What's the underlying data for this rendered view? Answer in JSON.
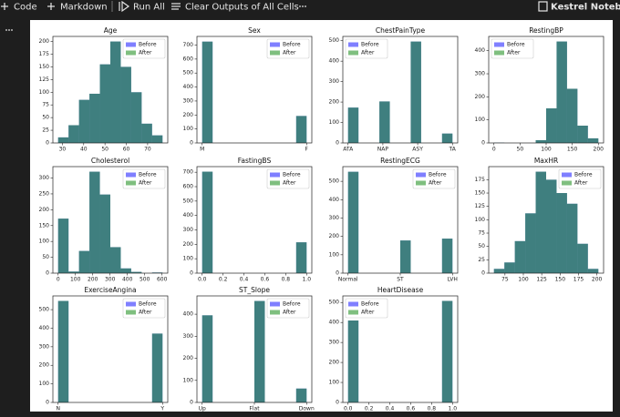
{
  "toolbar": [
    "Code",
    "Markdown",
    "Run All",
    "Clear Outputs of All Cells"
  ],
  "kernel": "Kestrel Notebook",
  "chart_data": [
    {
      "type": "histogram",
      "title": "Age",
      "bins": [
        28,
        32.9,
        37.8,
        42.7,
        47.6,
        52.5,
        57.4,
        62.3,
        67.2,
        72.1,
        77
      ],
      "alpha": 0.5,
      "legend": "upper right",
      "series": [
        {
          "name": "Before",
          "color": "#0000ff",
          "values": [
            11,
            35,
            85,
            97,
            155,
            200,
            150,
            100,
            38,
            15
          ]
        },
        {
          "name": "After",
          "color": "#008000",
          "values": [
            11,
            35,
            85,
            97,
            155,
            200,
            150,
            100,
            38,
            15
          ]
        }
      ],
      "xlim": [
        25.55,
        79.45
      ],
      "xticks": [
        30,
        40,
        50,
        60,
        70
      ],
      "ylim": [
        0,
        210
      ],
      "yticks": [
        0,
        25,
        50,
        75,
        100,
        125,
        150,
        175,
        200
      ]
    },
    {
      "type": "histogram",
      "title": "Sex",
      "bins": [
        0,
        0.1,
        0.2,
        0.3,
        0.4,
        0.5,
        0.6,
        0.7,
        0.8,
        0.9,
        1
      ],
      "alpha": 0.5,
      "legend": "upper right",
      "series": [
        {
          "name": "Before",
          "color": "#0000ff",
          "values": [
            725,
            0,
            0,
            0,
            0,
            0,
            0,
            0,
            0,
            193
          ]
        },
        {
          "name": "After",
          "color": "#008000",
          "values": [
            725,
            0,
            0,
            0,
            0,
            0,
            0,
            0,
            0,
            193
          ]
        }
      ],
      "xlim": [
        -0.05,
        1.05
      ],
      "xticks": [
        {
          "value": 0,
          "label": "M"
        },
        {
          "value": 1,
          "label": "F"
        }
      ],
      "ylim": [
        0,
        762
      ],
      "yticks": [
        0,
        100,
        200,
        300,
        400,
        500,
        600,
        700
      ]
    },
    {
      "type": "histogram",
      "title": "ChestPainType",
      "bins": [
        0,
        0.3,
        0.6,
        0.9,
        1.2,
        1.5,
        1.8,
        2.1,
        2.4,
        2.7,
        3
      ],
      "alpha": 0.5,
      "legend": "upper left",
      "series": [
        {
          "name": "Before",
          "color": "#0000ff",
          "values": [
            173,
            0,
            0,
            203,
            0,
            0,
            496,
            0,
            0,
            46
          ]
        },
        {
          "name": "After",
          "color": "#008000",
          "values": [
            173,
            0,
            0,
            203,
            0,
            0,
            496,
            0,
            0,
            46
          ]
        }
      ],
      "xlim": [
        -0.15,
        3.15
      ],
      "xticks": [
        {
          "value": 0,
          "label": "ATA"
        },
        {
          "value": 1,
          "label": "NAP"
        },
        {
          "value": 2,
          "label": "ASY"
        },
        {
          "value": 3,
          "label": "TA"
        }
      ],
      "ylim": [
        0,
        521
      ],
      "yticks": [
        0,
        100,
        200,
        300,
        400,
        500
      ]
    },
    {
      "type": "histogram",
      "title": "RestingBP",
      "bins": [
        0,
        20,
        40,
        60,
        80,
        100,
        120,
        140,
        160,
        180,
        200
      ],
      "alpha": 0.5,
      "legend": "upper left",
      "series": [
        {
          "name": "Before",
          "color": "#0000ff",
          "values": [
            1,
            0,
            0,
            0,
            12,
            150,
            440,
            235,
            75,
            20
          ]
        },
        {
          "name": "After",
          "color": "#008000",
          "values": [
            1,
            0,
            0,
            0,
            12,
            150,
            440,
            235,
            75,
            20
          ]
        }
      ],
      "xlim": [
        -10,
        210
      ],
      "xticks": [
        0,
        50,
        100,
        150,
        200
      ],
      "ylim": [
        0,
        462
      ],
      "yticks": [
        0,
        100,
        200,
        300,
        400
      ]
    },
    {
      "type": "histogram",
      "title": "Cholesterol",
      "bins": [
        0,
        60.3,
        120.6,
        180.9,
        241.2,
        301.5,
        361.8,
        422.1,
        482.4,
        542.7,
        603
      ],
      "alpha": 0.5,
      "legend": "upper right",
      "series": [
        {
          "name": "Before",
          "color": "#0000ff",
          "values": [
            172,
            5,
            70,
            320,
            248,
            82,
            15,
            4,
            0,
            2
          ]
        },
        {
          "name": "After",
          "color": "#008000",
          "values": [
            172,
            5,
            70,
            320,
            248,
            82,
            15,
            4,
            0,
            2
          ]
        }
      ],
      "xlim": [
        -30.15,
        633.15
      ],
      "xticks": [
        0,
        100,
        200,
        300,
        400,
        500,
        600
      ],
      "ylim": [
        0,
        336
      ],
      "yticks": [
        0,
        50,
        100,
        150,
        200,
        250,
        300
      ]
    },
    {
      "type": "histogram",
      "title": "FastingBS",
      "bins": [
        0,
        0.1,
        0.2,
        0.3,
        0.4,
        0.5,
        0.6,
        0.7,
        0.8,
        0.9,
        1
      ],
      "alpha": 0.5,
      "legend": "upper right",
      "series": [
        {
          "name": "Before",
          "color": "#0000ff",
          "values": [
            704,
            0,
            0,
            0,
            0,
            0,
            0,
            0,
            0,
            214
          ]
        },
        {
          "name": "After",
          "color": "#008000",
          "values": [
            704,
            0,
            0,
            0,
            0,
            0,
            0,
            0,
            0,
            214
          ]
        }
      ],
      "xlim": [
        -0.05,
        1.05
      ],
      "xticks": [
        {
          "value": 0,
          "label": "0.0"
        },
        {
          "value": 0.2,
          "label": "0.2"
        },
        {
          "value": 0.4,
          "label": "0.4"
        },
        {
          "value": 0.6,
          "label": "0.6"
        },
        {
          "value": 0.8,
          "label": "0.8"
        },
        {
          "value": 1,
          "label": "1.0"
        }
      ],
      "ylim": [
        0,
        739
      ],
      "yticks": [
        0,
        100,
        200,
        300,
        400,
        500,
        600,
        700
      ]
    },
    {
      "type": "histogram",
      "title": "RestingECG",
      "bins": [
        0,
        0.2,
        0.4,
        0.6,
        0.8,
        1,
        1.2,
        1.4,
        1.6,
        1.8,
        2
      ],
      "alpha": 0.5,
      "legend": "upper right",
      "series": [
        {
          "name": "Before",
          "color": "#0000ff",
          "values": [
            552,
            0,
            0,
            0,
            0,
            178,
            0,
            0,
            0,
            188
          ]
        },
        {
          "name": "After",
          "color": "#008000",
          "values": [
            552,
            0,
            0,
            0,
            0,
            178,
            0,
            0,
            0,
            188
          ]
        }
      ],
      "xlim": [
        -0.1,
        2.1
      ],
      "xticks": [
        {
          "value": 0,
          "label": "Normal"
        },
        {
          "value": 1,
          "label": "ST"
        },
        {
          "value": 2,
          "label": "LVH"
        }
      ],
      "ylim": [
        0,
        580
      ],
      "yticks": [
        0,
        100,
        200,
        300,
        400,
        500
      ]
    },
    {
      "type": "histogram",
      "title": "MaxHR",
      "bins": [
        60,
        74.2,
        88.4,
        102.6,
        116.8,
        131,
        145.2,
        159.4,
        173.6,
        187.8,
        202
      ],
      "alpha": 0.5,
      "legend": "upper right",
      "series": [
        {
          "name": "Before",
          "color": "#0000ff",
          "values": [
            8,
            20,
            60,
            112,
            190,
            175,
            150,
            130,
            55,
            8
          ]
        },
        {
          "name": "After",
          "color": "#008000",
          "values": [
            8,
            20,
            60,
            112,
            190,
            175,
            150,
            130,
            55,
            8
          ]
        }
      ],
      "xlim": [
        52.9,
        209.1
      ],
      "xticks": [
        75,
        100,
        125,
        150,
        175,
        200
      ],
      "ylim": [
        0,
        199.5
      ],
      "yticks": [
        0,
        25,
        50,
        75,
        100,
        125,
        150,
        175
      ]
    },
    {
      "type": "histogram",
      "title": "ExerciseAngina",
      "bins": [
        0,
        0.1,
        0.2,
        0.3,
        0.4,
        0.5,
        0.6,
        0.7,
        0.8,
        0.9,
        1
      ],
      "alpha": 0.5,
      "legend": "upper right",
      "series": [
        {
          "name": "Before",
          "color": "#0000ff",
          "values": [
            547,
            0,
            0,
            0,
            0,
            0,
            0,
            0,
            0,
            371
          ]
        },
        {
          "name": "After",
          "color": "#008000",
          "values": [
            547,
            0,
            0,
            0,
            0,
            0,
            0,
            0,
            0,
            371
          ]
        }
      ],
      "xlim": [
        -0.05,
        1.05
      ],
      "xticks": [
        {
          "value": 0,
          "label": "N"
        },
        {
          "value": 1,
          "label": "Y"
        }
      ],
      "ylim": [
        0,
        574
      ],
      "yticks": [
        0,
        100,
        200,
        300,
        400,
        500
      ]
    },
    {
      "type": "histogram",
      "title": "ST_Slope",
      "bins": [
        0,
        0.2,
        0.4,
        0.6,
        0.8,
        1,
        1.2,
        1.4,
        1.6,
        1.8,
        2
      ],
      "alpha": 0.5,
      "legend": "upper right",
      "series": [
        {
          "name": "Before",
          "color": "#0000ff",
          "values": [
            395,
            0,
            0,
            0,
            0,
            460,
            0,
            0,
            0,
            63
          ]
        },
        {
          "name": "After",
          "color": "#008000",
          "values": [
            395,
            0,
            0,
            0,
            0,
            460,
            0,
            0,
            0,
            63
          ]
        }
      ],
      "xlim": [
        -0.1,
        2.1
      ],
      "xticks": [
        {
          "value": 0,
          "label": "Up"
        },
        {
          "value": 1,
          "label": "Flat"
        },
        {
          "value": 2,
          "label": "Down"
        }
      ],
      "ylim": [
        0,
        483
      ],
      "yticks": [
        0,
        100,
        200,
        300,
        400
      ]
    },
    {
      "type": "histogram",
      "title": "HeartDisease",
      "bins": [
        0,
        0.1,
        0.2,
        0.3,
        0.4,
        0.5,
        0.6,
        0.7,
        0.8,
        0.9,
        1
      ],
      "alpha": 0.5,
      "legend": "upper left",
      "series": [
        {
          "name": "Before",
          "color": "#0000ff",
          "values": [
            410,
            0,
            0,
            0,
            0,
            0,
            0,
            0,
            0,
            508
          ]
        },
        {
          "name": "After",
          "color": "#008000",
          "values": [
            410,
            0,
            0,
            0,
            0,
            0,
            0,
            0,
            0,
            508
          ]
        }
      ],
      "xlim": [
        -0.05,
        1.05
      ],
      "xticks": [
        {
          "value": 0,
          "label": "0.0"
        },
        {
          "value": 0.2,
          "label": "0.2"
        },
        {
          "value": 0.4,
          "label": "0.4"
        },
        {
          "value": 0.6,
          "label": "0.6"
        },
        {
          "value": 0.8,
          "label": "0.8"
        },
        {
          "value": 1,
          "label": "1.0"
        }
      ],
      "ylim": [
        0,
        533
      ],
      "yticks": [
        0,
        100,
        200,
        300,
        400,
        500
      ]
    }
  ]
}
